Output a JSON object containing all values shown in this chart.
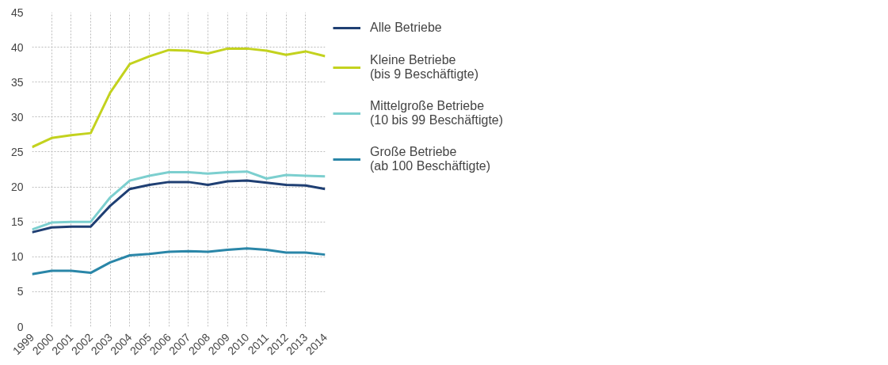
{
  "chart_data": {
    "type": "line",
    "x": [
      1999,
      2000,
      2001,
      2002,
      2003,
      2004,
      2005,
      2006,
      2007,
      2008,
      2009,
      2010,
      2011,
      2012,
      2013,
      2014
    ],
    "series": [
      {
        "name": "Alle Betriebe",
        "color": "#1f3f73",
        "values": [
          13.5,
          14.2,
          14.3,
          14.3,
          17.3,
          19.7,
          20.3,
          20.7,
          20.7,
          20.3,
          20.8,
          20.9,
          20.6,
          20.3,
          20.2,
          19.7
        ]
      },
      {
        "name": "Kleine Betriebe\n(bis 9 Beschäftigte)",
        "color": "#c3d21e",
        "values": [
          25.7,
          27.0,
          27.4,
          27.7,
          33.5,
          37.6,
          38.7,
          39.6,
          39.5,
          39.1,
          39.8,
          39.8,
          39.5,
          38.9,
          39.4,
          38.7
        ]
      },
      {
        "name": "Mittelgroße Betriebe\n(10 bis 99 Beschäftigte)",
        "color": "#7ccfcf",
        "values": [
          13.9,
          14.9,
          15.0,
          15.0,
          18.5,
          20.9,
          21.6,
          22.1,
          22.1,
          21.9,
          22.1,
          22.2,
          21.2,
          21.7,
          21.6,
          21.5
        ]
      },
      {
        "name": "Große Betriebe\n(ab 100 Beschäftigte)",
        "color": "#2a86a8",
        "values": [
          7.5,
          8.0,
          8.0,
          7.7,
          9.2,
          10.2,
          10.4,
          10.7,
          10.8,
          10.7,
          11.0,
          11.2,
          11.0,
          10.6,
          10.6,
          10.3
        ]
      }
    ],
    "xlim": [
      1999,
      2014
    ],
    "xticks": [
      1999,
      2000,
      2001,
      2002,
      2003,
      2004,
      2005,
      2006,
      2007,
      2008,
      2009,
      2010,
      2011,
      2012,
      2013,
      2014
    ],
    "ylim": [
      0,
      45
    ],
    "yticks": [
      0,
      5,
      10,
      15,
      20,
      25,
      30,
      35,
      40,
      45
    ],
    "grid": true,
    "legend": "right",
    "marker": "none",
    "line_style": "solid"
  }
}
